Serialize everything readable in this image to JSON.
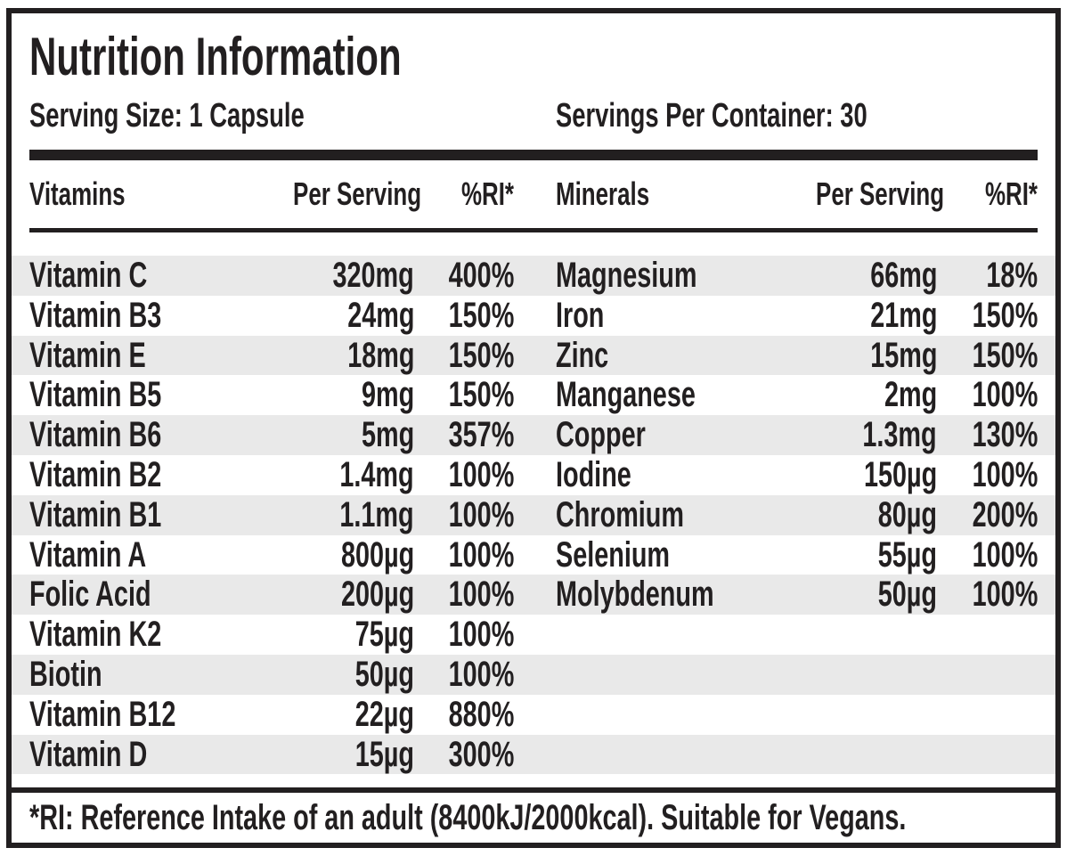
{
  "header": {
    "title": "Nutrition Information",
    "serving_size": "Serving Size: 1 Capsule",
    "servings_per_container": "Servings Per Container: 30"
  },
  "table": {
    "vitamins_header": {
      "name": "Vitamins",
      "per_serving": "Per Serving",
      "ri": "%RI*"
    },
    "minerals_header": {
      "name": "Minerals",
      "per_serving": "Per Serving",
      "ri": "%RI*"
    },
    "rows": [
      {
        "vitamin": {
          "name": "Vitamin C",
          "amount": "320mg",
          "ri": "400%"
        },
        "mineral": {
          "name": "Magnesium",
          "amount": "66mg",
          "ri": "18%"
        }
      },
      {
        "vitamin": {
          "name": "Vitamin B3",
          "amount": "24mg",
          "ri": "150%"
        },
        "mineral": {
          "name": "Iron",
          "amount": "21mg",
          "ri": "150%"
        }
      },
      {
        "vitamin": {
          "name": "Vitamin E",
          "amount": "18mg",
          "ri": "150%"
        },
        "mineral": {
          "name": "Zinc",
          "amount": "15mg",
          "ri": "150%"
        }
      },
      {
        "vitamin": {
          "name": "Vitamin B5",
          "amount": "9mg",
          "ri": "150%"
        },
        "mineral": {
          "name": "Manganese",
          "amount": "2mg",
          "ri": "100%"
        }
      },
      {
        "vitamin": {
          "name": "Vitamin B6",
          "amount": "5mg",
          "ri": "357%"
        },
        "mineral": {
          "name": "Copper",
          "amount": "1.3mg",
          "ri": "130%"
        }
      },
      {
        "vitamin": {
          "name": "Vitamin B2",
          "amount": "1.4mg",
          "ri": "100%"
        },
        "mineral": {
          "name": "Iodine",
          "amount": "150µg",
          "ri": "100%"
        }
      },
      {
        "vitamin": {
          "name": "Vitamin B1",
          "amount": "1.1mg",
          "ri": "100%"
        },
        "mineral": {
          "name": "Chromium",
          "amount": "80µg",
          "ri": "200%"
        }
      },
      {
        "vitamin": {
          "name": "Vitamin A",
          "amount": "800µg",
          "ri": "100%"
        },
        "mineral": {
          "name": "Selenium",
          "amount": "55µg",
          "ri": "100%"
        }
      },
      {
        "vitamin": {
          "name": "Folic Acid",
          "amount": "200µg",
          "ri": "100%"
        },
        "mineral": {
          "name": "Molybdenum",
          "amount": "50µg",
          "ri": "100%"
        }
      },
      {
        "vitamin": {
          "name": "Vitamin K2",
          "amount": "75µg",
          "ri": "100%"
        },
        "mineral": null
      },
      {
        "vitamin": {
          "name": "Biotin",
          "amount": "50µg",
          "ri": "100%"
        },
        "mineral": null
      },
      {
        "vitamin": {
          "name": "Vitamin B12",
          "amount": "22µg",
          "ri": "880%"
        },
        "mineral": null
      },
      {
        "vitamin": {
          "name": "Vitamin D",
          "amount": "15µg",
          "ri": "300%"
        },
        "mineral": null
      }
    ]
  },
  "footnote": "*RI: Reference Intake of an adult (8400kJ/2000kcal). Suitable for Vegans.",
  "colors": {
    "ink": "#221f20",
    "stripe": "#e9e9e9",
    "background": "#ffffff"
  }
}
